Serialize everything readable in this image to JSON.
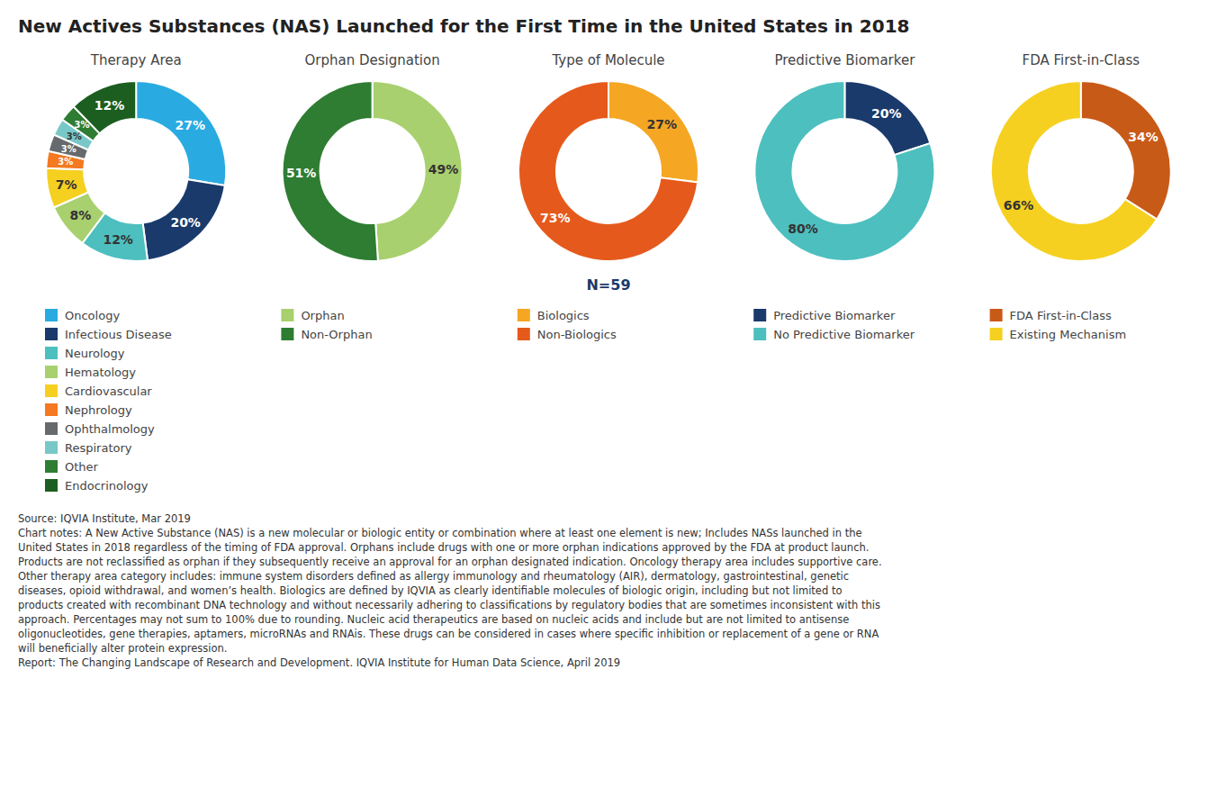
{
  "title": "New Actives Substances (NAS) Launched for the First Time in the United States in 2018",
  "annotations": [
    "N=59",
    "Source: IQVIA Institute, Mar 2019",
    "Chart notes: A New Active Substance (NAS) is a new molecular or biologic entity or combination where at least one element is new; Includes NASs launched in the\nUnited States in 2018 regardless of the timing of FDA approval. Orphans include drugs with one or more orphan indications approved by the FDA at product launch.\nProducts are not reclassified as orphan if they subsequently receive an approval for an orphan designated indication. Oncology therapy area includes supportive care.\nOther therapy area category includes: immune system disorders defined as allergy immunology and rheumatology (AIR), dermatology, gastrointestinal, genetic\ndiseases, opioid withdrawal, and women’s health. Biologics are defined by IQVIA as clearly identifiable molecules of biologic origin, including but not limited to\nproducts created with recombinant DNA technology and without necessarily adhering to classifications by regulatory bodies that are sometimes inconsistent with this\napproach. Percentages may not sum to 100% due to rounding. Nucleic acid therapeutics are based on nucleic acids and include but are not limited to antisense\noligonucleotides, gene therapies, aptamers, microRNAs and RNAis. These drugs can be considered in cases where specific inhibition or replacement of a gene or RNA\nwill beneficially alter protein expression.",
    "Report: The Changing Landscape of Research and Development. IQVIA Institute for Human Data Science, April 2019"
  ],
  "chart_data": [
    {
      "type": "pie",
      "title": "Therapy Area",
      "categories": [
        "Oncology",
        "Infectious Disease",
        "Neurology",
        "Hematology",
        "Cardiovascular",
        "Nephrology",
        "Ophthalmology",
        "Respiratory",
        "Other",
        "Endocrinology"
      ],
      "values": [
        27,
        20,
        12,
        8,
        7,
        3,
        3,
        3,
        3,
        12
      ],
      "value_labels": [
        "27%",
        "20%",
        "12%",
        "8%",
        "7%",
        "3%",
        "3%",
        "3%",
        "3%",
        "12%"
      ],
      "colors": [
        "#29ABE2",
        "#1A3A6B",
        "#4DBFBF",
        "#A8D06E",
        "#F5D020",
        "#F47920",
        "#666A6D",
        "#78C8C8",
        "#2E7D32",
        "#1B5E20"
      ],
      "data_labels": true,
      "legend": "bottom"
    },
    {
      "type": "pie",
      "title": "Orphan Designation",
      "categories": [
        "Orphan",
        "Non-Orphan"
      ],
      "values": [
        49,
        51
      ],
      "value_labels": [
        "49%",
        "51%"
      ],
      "colors": [
        "#A8D06E",
        "#2E7D32"
      ],
      "data_labels": true,
      "legend": "bottom"
    },
    {
      "type": "pie",
      "title": "Type of Molecule",
      "categories": [
        "Biologics",
        "Non-Biologics"
      ],
      "values": [
        27,
        73
      ],
      "value_labels": [
        "27%",
        "73%"
      ],
      "colors": [
        "#F5A623",
        "#E55A1C"
      ],
      "data_labels": true,
      "legend": "bottom"
    },
    {
      "type": "pie",
      "title": "Predictive Biomarker",
      "categories": [
        "Predictive Biomarker",
        "No Predictive Biomarker"
      ],
      "values": [
        20,
        80
      ],
      "value_labels": [
        "20%",
        "80%"
      ],
      "colors": [
        "#1A3A6B",
        "#4DBFBF"
      ],
      "data_labels": true,
      "legend": "bottom"
    },
    {
      "type": "pie",
      "title": "FDA First-in-Class",
      "categories": [
        "FDA First-in-Class",
        "Existing  Mechanism"
      ],
      "values": [
        34,
        66
      ],
      "value_labels": [
        "34%",
        "66%"
      ],
      "colors": [
        "#C85A17",
        "#F5D020"
      ],
      "data_labels": true,
      "legend": "bottom"
    }
  ]
}
